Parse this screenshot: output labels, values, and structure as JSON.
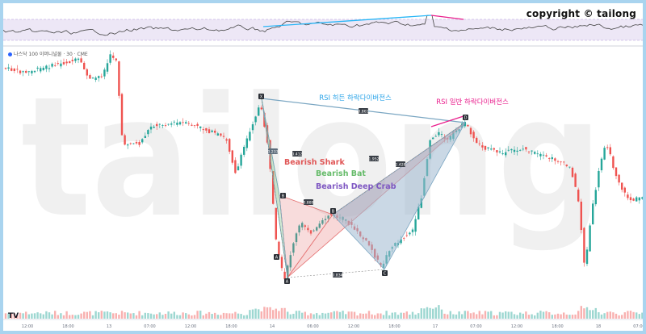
{
  "copyright": "copyright © tailong",
  "watermark": "tailong",
  "symbol": "나스닥 100 이머니널물 · 30 · CME",
  "platform_logo": "TV",
  "colors": {
    "up": "#26a69a",
    "down": "#ef5350",
    "rsi_line": "#444444",
    "rsi_band": "#ede7f6",
    "hidden_div": "#29b6f6",
    "regular_div": "#e91e8c",
    "shark": "#e57373",
    "bat": "#81c784",
    "crab": "#9575cd",
    "x_leg": "#7aa6c2"
  },
  "chart_data": {
    "type": "candlestick",
    "x_ticks": [
      "12:00",
      "18:00",
      "13",
      "07:00",
      "12:00",
      "18:00",
      "14",
      "06:00",
      "12:00",
      "18:00",
      "17",
      "07:00",
      "12:00",
      "18:00",
      "18",
      "07:00"
    ],
    "annotations": {
      "rsi_hidden_divergence": "RSI 히든 하락다이버전스",
      "rsi_regular_divergence": "RSI 일반 하락다이버전스",
      "patterns": [
        {
          "name": "Bearish Shark",
          "color": "#e57373"
        },
        {
          "name": "Bearish Bat",
          "color": "#81c784"
        },
        {
          "name": "Bearish Deep Crab",
          "color": "#9575cd"
        }
      ],
      "points": [
        "X",
        "A",
        "B",
        "C",
        "D",
        "A",
        "B"
      ],
      "ratios": [
        "0.233",
        "0.412",
        "0.889",
        "1.952",
        "2.428",
        "0.861",
        "0.834"
      ]
    }
  }
}
